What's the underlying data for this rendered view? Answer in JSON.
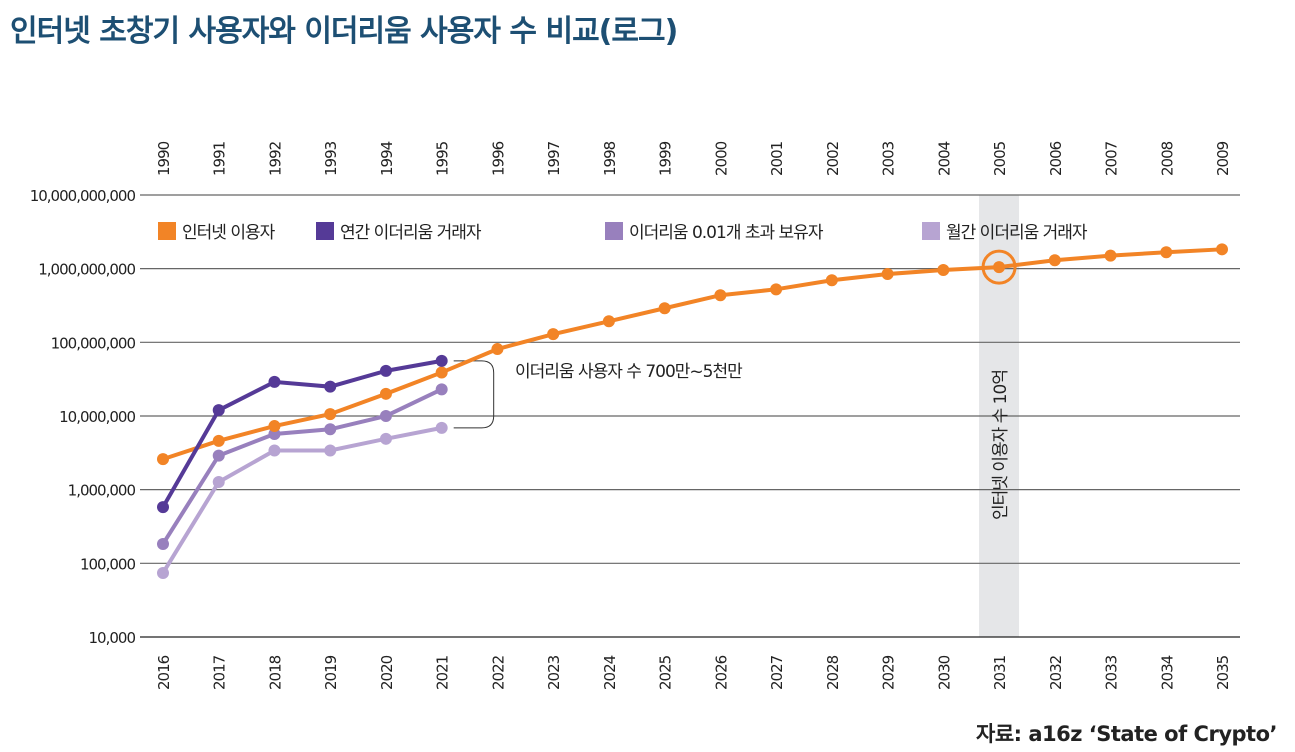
{
  "chart_data": {
    "type": "line",
    "title": "인터넷 초창기 사용자와 이더리움 사용자 수 비교(로그)",
    "source": "자료: a16z ‘State of Crypto’",
    "y_scale": "log",
    "ylim": [
      10000,
      10000000000
    ],
    "y_ticks": [
      10000,
      100000,
      1000000,
      10000000,
      100000000,
      1000000000,
      10000000000
    ],
    "y_tick_labels": [
      "10,000",
      "100,000",
      "1,000,000",
      "10,000,000",
      "100,000,000",
      "1,000,000,000",
      "10,000,000,000"
    ],
    "x_bottom": [
      "2016",
      "2017",
      "2018",
      "2019",
      "2020",
      "2021",
      "2022",
      "2023",
      "2024",
      "2025",
      "2026",
      "2027",
      "2028",
      "2029",
      "2030",
      "2031",
      "2032",
      "2033",
      "2034",
      "2035"
    ],
    "x_top": [
      "1990",
      "1991",
      "1992",
      "1993",
      "1994",
      "1995",
      "1996",
      "1997",
      "1998",
      "1999",
      "2000",
      "2001",
      "2002",
      "2003",
      "2004",
      "2005",
      "2006",
      "2007",
      "2008",
      "2009"
    ],
    "grid": true,
    "legend_position": "top",
    "series": [
      {
        "name": "인터넷 이용자",
        "color": "#f28426",
        "values": [
          2600000,
          4600000,
          7300000,
          10600000,
          20000000,
          39000000,
          81000000,
          129000000,
          193000000,
          290000000,
          436000000,
          524000000,
          695000000,
          845000000,
          960000000,
          1050000000,
          1300000000,
          1500000000,
          1670000000,
          1830000000
        ]
      },
      {
        "name": "연간 이더리움 거래자",
        "color": "#553a97",
        "values": [
          580000,
          12000000,
          29000000,
          25000000,
          41000000,
          56000000
        ]
      },
      {
        "name": "이더리움 0.01개 초과 보유자",
        "color": "#9880bd",
        "values": [
          183000,
          2900000,
          5700000,
          6600000,
          10000000,
          23000000
        ]
      },
      {
        "name": "월간 이더리움 거래자",
        "color": "#b7a4d2",
        "values": [
          74000,
          1270000,
          3400000,
          3400000,
          4900000,
          6900000
        ]
      }
    ],
    "annotations": {
      "bracket_label": "이더리움 사용자 수 700만~5천만",
      "highlight_label": "인터넷 이용자 수 10억",
      "highlight_year": "2031",
      "highlight_color": "#e5e6e8"
    }
  }
}
